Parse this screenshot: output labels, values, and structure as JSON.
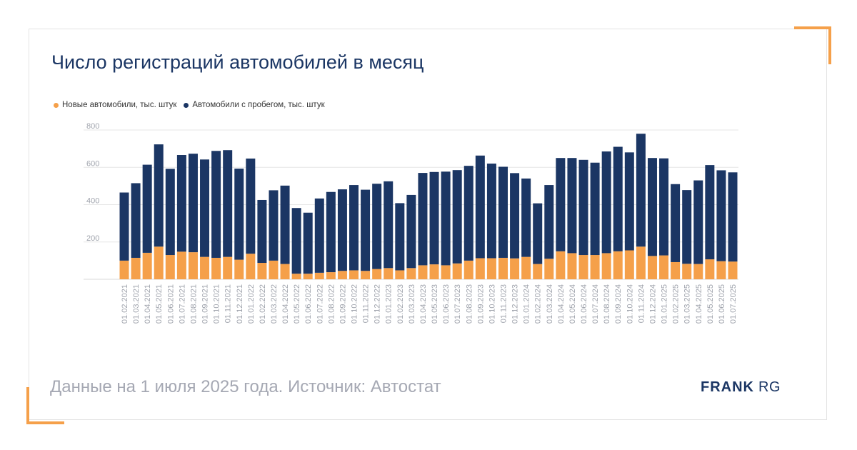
{
  "title": "Число регистраций автомобилей в месяц",
  "footer": "Данные на 1 июля 2025 года. Источник: Автостат",
  "logo": {
    "part1": "FRANK",
    "part2": "RG"
  },
  "colors": {
    "new": "#f5a04a",
    "used": "#1b3664",
    "grid": "#e6e6e6",
    "tick": "#a0a4ad"
  },
  "chart_data": {
    "type": "bar",
    "stacked": true,
    "ylim": [
      0,
      800
    ],
    "yticks": [
      200,
      400,
      600,
      800
    ],
    "grid": true,
    "legend_position": "top-left",
    "categories": [
      "01.02.2021",
      "01.03.2021",
      "01.04.2021",
      "01.05.2021",
      "01.06.2021",
      "01.07.2021",
      "01.08.2021",
      "01.09.2021",
      "01.10.2021",
      "01.11.2021",
      "01.12.2021",
      "01.01.2022",
      "01.02.2022",
      "01.03.2022",
      "01.04.2022",
      "01.05.2022",
      "01.06.2022",
      "01.07.2022",
      "01.08.2022",
      "01.09.2022",
      "01.10.2022",
      "01.11.2022",
      "01.12.2022",
      "01.01.2023",
      "01.02.2023",
      "01.03.2023",
      "01.04.2023",
      "01.05.2023",
      "01.06.2023",
      "01.07.2023",
      "01.08.2023",
      "01.09.2023",
      "01.10.2023",
      "01.11.2023",
      "01.12.2023",
      "01.01.2024",
      "01.02.2024",
      "01.03.2024",
      "01.04.2024",
      "01.05.2024",
      "01.06.2024",
      "01.07.2024",
      "01.08.2024",
      "01.09.2024",
      "01.10.2024",
      "01.11.2024",
      "01.12.2024",
      "01.01.2025",
      "01.02.2025",
      "01.03.2025",
      "01.04.2025",
      "01.05.2025",
      "01.06.2025",
      "01.07.2025"
    ],
    "series": [
      {
        "name": "Новые автомобили, тыс. штук",
        "values": [
          100,
          115,
          142,
          175,
          130,
          148,
          145,
          120,
          115,
          120,
          105,
          137,
          88,
          100,
          82,
          30,
          30,
          35,
          38,
          45,
          48,
          45,
          55,
          60,
          48,
          60,
          75,
          80,
          75,
          85,
          100,
          113,
          113,
          115,
          112,
          120,
          82,
          110,
          150,
          140,
          130,
          130,
          140,
          150,
          155,
          175,
          125,
          128,
          92,
          83,
          82,
          107,
          97,
          95
        ]
      },
      {
        "name": "Автомобили с пробегом, тыс. штук",
        "values": [
          365,
          400,
          472,
          548,
          462,
          518,
          528,
          522,
          573,
          572,
          488,
          510,
          337,
          377,
          420,
          352,
          327,
          398,
          430,
          437,
          457,
          435,
          457,
          465,
          360,
          392,
          495,
          495,
          502,
          500,
          508,
          550,
          507,
          488,
          457,
          420,
          325,
          395,
          500,
          510,
          510,
          495,
          545,
          560,
          525,
          605,
          525,
          520,
          418,
          395,
          448,
          505,
          487,
          478
        ]
      }
    ]
  }
}
